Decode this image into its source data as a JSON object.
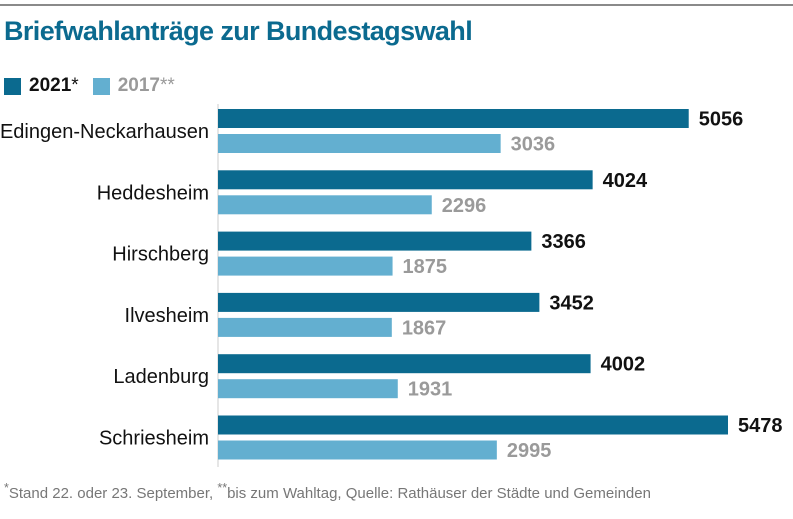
{
  "title": "Briefwahlanträge zur Bundestagswahl",
  "legend": [
    {
      "label": "2021",
      "mark": "*",
      "color": "#0b6a8f",
      "label_color": "#111111"
    },
    {
      "label": "2017",
      "mark": "**",
      "color": "#63afd0",
      "label_color": "#9a9a9a"
    }
  ],
  "footnote": {
    "mark1": "*",
    "text1": "Stand 22. oder 23. September, ",
    "mark2": "**",
    "text2": "bis zum Wahltag, Quelle: Rathäuser der Städte und Gemeinden",
    "color": "#777777"
  },
  "colors": {
    "title": "#0b6a8f",
    "axis": "#cccccc"
  },
  "chart_data": {
    "type": "bar",
    "orientation": "horizontal",
    "categories": [
      "Edingen-Neckarhausen",
      "Heddesheim",
      "Hirschberg",
      "Ilvesheim",
      "Ladenburg",
      "Schriesheim"
    ],
    "series": [
      {
        "name": "2021",
        "values": [
          5056,
          4024,
          3366,
          3452,
          4002,
          5478
        ],
        "color": "#0b6a8f",
        "label_color": "#111111"
      },
      {
        "name": "2017",
        "values": [
          3036,
          2296,
          1875,
          1867,
          1931,
          2995
        ],
        "color": "#63afd0",
        "label_color": "#9a9a9a"
      }
    ],
    "title": "Briefwahlanträge zur Bundestagswahl",
    "xlabel": "",
    "ylabel": "",
    "xlim": [
      0,
      5478
    ],
    "grid": false,
    "legend_position": "top-left",
    "data_labels": true
  }
}
